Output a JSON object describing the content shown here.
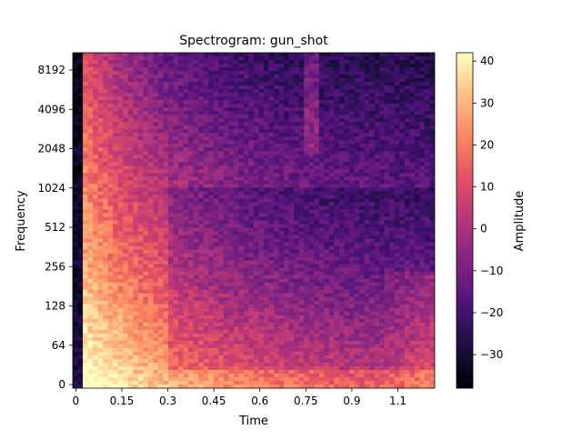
{
  "chart_data": {
    "type": "heatmap",
    "title": "Spectrogram: gun_shot",
    "xlabel": "Time",
    "ylabel": "Frequency",
    "x_ticks": [
      "0",
      "0.15",
      "0.3",
      "0.45",
      "0.6",
      "0.75",
      "0.9",
      "1.1"
    ],
    "x_tick_values": [
      0,
      0.15,
      0.3,
      0.45,
      0.6,
      0.75,
      0.9,
      1.05
    ],
    "xlim": [
      -0.01,
      1.17
    ],
    "y_scale": "symlog-like",
    "y_ticks": [
      "0",
      "64",
      "128",
      "256",
      "512",
      "1024",
      "2048",
      "4096",
      "8192"
    ],
    "y_tick_values": [
      0,
      64,
      128,
      256,
      512,
      1024,
      2048,
      4096,
      8192
    ],
    "colorbar": {
      "label": "Amplitude",
      "ticks": [
        "40",
        "30",
        "20",
        "10",
        "0",
        "−10",
        "−20",
        "−30"
      ],
      "tick_values": [
        40,
        30,
        20,
        10,
        0,
        -10,
        -20,
        -30
      ],
      "range": [
        -38,
        42
      ],
      "colormap": "magma"
    },
    "summary": {
      "onset_time": 0.02,
      "peak_amplitude": 42,
      "min_amplitude": -38,
      "description_of_energy": "Strong broadband burst at onset (0.02–0.3 s) decaying over time; low frequencies stay loud throughout"
    }
  }
}
